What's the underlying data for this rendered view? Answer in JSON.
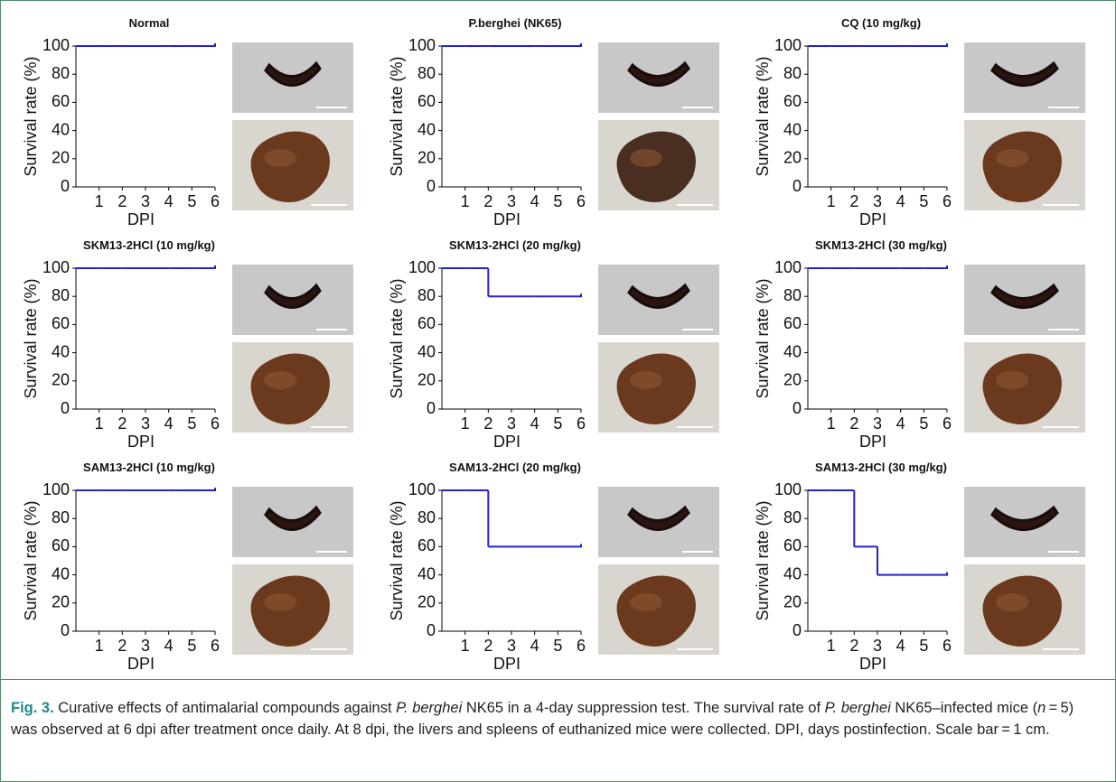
{
  "chart_data": [
    {
      "type": "step",
      "title": "Normal",
      "x": [
        0,
        1,
        2,
        3,
        4,
        5,
        6
      ],
      "values": [
        100,
        100,
        100,
        100,
        100,
        100,
        100
      ],
      "color": "#2323c8",
      "xlim": [
        0,
        6
      ],
      "ylim": [
        0,
        100
      ],
      "xticks": [
        1,
        2,
        3,
        4,
        5,
        6
      ],
      "yticks": [
        0,
        20,
        40,
        60,
        80,
        100
      ],
      "xlabel": "DPI",
      "ylabel": "Survival rate (%)"
    },
    {
      "type": "step",
      "title": "P.berghei (NK65)",
      "x": [
        0,
        1,
        2,
        3,
        4,
        5,
        6
      ],
      "values": [
        100,
        100,
        100,
        100,
        100,
        100,
        100
      ],
      "color": "#2323c8",
      "xlim": [
        0,
        6
      ],
      "ylim": [
        0,
        100
      ],
      "xticks": [
        1,
        2,
        3,
        4,
        5,
        6
      ],
      "yticks": [
        0,
        20,
        40,
        60,
        80,
        100
      ],
      "xlabel": "DPI",
      "ylabel": "Survival rate (%)"
    },
    {
      "type": "step",
      "title": "CQ (10 mg/kg)",
      "x": [
        0,
        1,
        2,
        3,
        4,
        5,
        6
      ],
      "values": [
        100,
        100,
        100,
        100,
        100,
        100,
        100
      ],
      "color": "#2323c8",
      "xlim": [
        0,
        6
      ],
      "ylim": [
        0,
        100
      ],
      "xticks": [
        1,
        2,
        3,
        4,
        5,
        6
      ],
      "yticks": [
        0,
        20,
        40,
        60,
        80,
        100
      ],
      "xlabel": "DPI",
      "ylabel": "Survival rate (%)"
    },
    {
      "type": "step",
      "title": "SKM13-2HCl (10 mg/kg)",
      "x": [
        0,
        1,
        2,
        3,
        4,
        5,
        6
      ],
      "values": [
        100,
        100,
        100,
        100,
        100,
        100,
        100
      ],
      "color": "#2323c8",
      "xlim": [
        0,
        6
      ],
      "ylim": [
        0,
        100
      ],
      "xticks": [
        1,
        2,
        3,
        4,
        5,
        6
      ],
      "yticks": [
        0,
        20,
        40,
        60,
        80,
        100
      ],
      "xlabel": "DPI",
      "ylabel": "Survival rate (%)"
    },
    {
      "type": "step",
      "title": "SKM13-2HCl (20 mg/kg)",
      "x": [
        0,
        1,
        2,
        3,
        4,
        5,
        6
      ],
      "values": [
        100,
        100,
        80,
        80,
        80,
        80,
        80
      ],
      "color": "#2323c8",
      "xlim": [
        0,
        6
      ],
      "ylim": [
        0,
        100
      ],
      "xticks": [
        1,
        2,
        3,
        4,
        5,
        6
      ],
      "yticks": [
        0,
        20,
        40,
        60,
        80,
        100
      ],
      "xlabel": "DPI",
      "ylabel": "Survival rate (%)"
    },
    {
      "type": "step",
      "title": "SKM13-2HCl (30 mg/kg)",
      "x": [
        0,
        1,
        2,
        3,
        4,
        5,
        6
      ],
      "values": [
        100,
        100,
        100,
        100,
        100,
        100,
        100
      ],
      "color": "#2323c8",
      "xlim": [
        0,
        6
      ],
      "ylim": [
        0,
        100
      ],
      "xticks": [
        1,
        2,
        3,
        4,
        5,
        6
      ],
      "yticks": [
        0,
        20,
        40,
        60,
        80,
        100
      ],
      "xlabel": "DPI",
      "ylabel": "Survival rate (%)"
    },
    {
      "type": "step",
      "title": "SAM13-2HCl (10 mg/kg)",
      "x": [
        0,
        1,
        2,
        3,
        4,
        5,
        6
      ],
      "values": [
        100,
        100,
        100,
        100,
        100,
        100,
        100
      ],
      "color": "#2323c8",
      "xlim": [
        0,
        6
      ],
      "ylim": [
        0,
        100
      ],
      "xticks": [
        1,
        2,
        3,
        4,
        5,
        6
      ],
      "yticks": [
        0,
        20,
        40,
        60,
        80,
        100
      ],
      "xlabel": "DPI",
      "ylabel": "Survival rate (%)"
    },
    {
      "type": "step",
      "title": "SAM13-2HCl (20 mg/kg)",
      "x": [
        0,
        1,
        2,
        3,
        4,
        5,
        6
      ],
      "values": [
        100,
        100,
        60,
        60,
        60,
        60,
        60
      ],
      "color": "#2323c8",
      "xlim": [
        0,
        6
      ],
      "ylim": [
        0,
        100
      ],
      "xticks": [
        1,
        2,
        3,
        4,
        5,
        6
      ],
      "yticks": [
        0,
        20,
        40,
        60,
        80,
        100
      ],
      "xlabel": "DPI",
      "ylabel": "Survival rate (%)"
    },
    {
      "type": "step",
      "title": "SAM13-2HCl (30 mg/kg)",
      "x": [
        0,
        1,
        2,
        3,
        4,
        5,
        6
      ],
      "values": [
        100,
        100,
        60,
        40,
        40,
        40,
        40
      ],
      "color": "#2323c8",
      "xlim": [
        0,
        6
      ],
      "ylim": [
        0,
        100
      ],
      "xticks": [
        1,
        2,
        3,
        4,
        5,
        6
      ],
      "yticks": [
        0,
        20,
        40,
        60,
        80,
        100
      ],
      "xlabel": "DPI",
      "ylabel": "Survival rate (%)"
    }
  ],
  "caption": [
    "Fig. 3.",
    " Curative effects of antimalarial compounds against ",
    "P. berghei",
    " NK65 in a 4-day suppression test. The survival rate of ",
    "P. berghei",
    " NK65–infected mice (",
    "n",
    " = 5) was observed at 6 dpi after treatment once daily. At 8 dpi, the livers and spleens of euthanized mice were collected. DPI, days postinfection. Scale bar = 1 cm."
  ]
}
